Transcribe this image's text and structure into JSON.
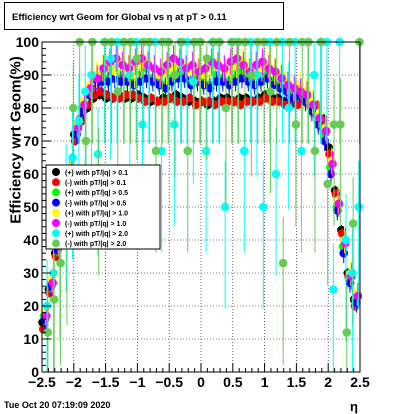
{
  "header": {
    "title": "Efficiency wrt Geom for Global vs   η at pT > 0.11"
  },
  "footer": {
    "timestamp": "Tue Oct 20 07:19:09 2020"
  },
  "chart_data": {
    "type": "scatter",
    "title": "Efficiency wrt Geom for Global vs   η at pT > 0.11",
    "xlabel": "η",
    "ylabel": "Efficiency wrt Geom(%)",
    "xlim": [
      -2.5,
      2.5
    ],
    "ylim": [
      0,
      100
    ],
    "x_ticks": [
      -2.5,
      -2,
      -1.5,
      -1,
      -0.5,
      0,
      0.5,
      1,
      1.5,
      2,
      2.5
    ],
    "x_tick_labels": [
      "−2.5",
      "−2",
      "−1.5",
      "−1",
      "−0.5",
      "0",
      "0.5",
      "1",
      "1.5",
      "2",
      "2.5"
    ],
    "y_ticks": [
      0,
      10,
      20,
      30,
      40,
      50,
      60,
      70,
      80,
      90,
      100
    ],
    "y_tick_labels": [
      "0",
      "10",
      "20",
      "30",
      "40",
      "50",
      "60",
      "70",
      "80",
      "90",
      "100"
    ],
    "grid": true,
    "legend_position": "left-middle",
    "series": [
      {
        "name": "(+) with pT/|q| > 0.1",
        "color": "#000000",
        "kind": "low",
        "x": [
          -2.45,
          -2.35,
          -2.25,
          -2.15,
          -2.05,
          -1.95,
          -1.85,
          -1.75,
          -1.65,
          -1.55,
          -1.45,
          -1.35,
          -1.25,
          -1.15,
          -1.05,
          -0.95,
          -0.85,
          -0.75,
          -0.65,
          -0.55,
          -0.45,
          -0.35,
          -0.25,
          -0.15,
          -0.05,
          0.05,
          0.15,
          0.25,
          0.35,
          0.45,
          0.55,
          0.65,
          0.75,
          0.85,
          0.95,
          1.05,
          1.15,
          1.25,
          1.35,
          1.45,
          1.55,
          1.65,
          1.75,
          1.85,
          1.95,
          2.05,
          2.15,
          2.25,
          2.35,
          2.45
        ],
        "y": [
          15,
          25,
          36,
          48,
          58,
          72,
          77,
          80,
          83,
          84,
          83,
          83,
          84,
          83,
          83,
          84,
          83,
          82,
          82,
          83,
          83,
          84,
          83,
          82,
          82,
          82,
          81,
          82,
          83,
          83,
          82,
          83,
          83,
          82,
          83,
          84,
          83,
          83,
          82,
          81,
          82,
          83,
          82,
          81,
          77,
          68,
          55,
          43,
          30,
          22
        ]
      },
      {
        "name": "(-) with pT/|q| > 0.1",
        "color": "#ff0000",
        "kind": "low",
        "x": [
          -2.45,
          -2.35,
          -2.25,
          -2.15,
          -2.05,
          -1.95,
          -1.85,
          -1.75,
          -1.65,
          -1.55,
          -1.45,
          -1.35,
          -1.25,
          -1.15,
          -1.05,
          -0.95,
          -0.85,
          -0.75,
          -0.65,
          -0.55,
          -0.45,
          -0.35,
          -0.25,
          -0.15,
          -0.05,
          0.05,
          0.15,
          0.25,
          0.35,
          0.45,
          0.55,
          0.65,
          0.75,
          0.85,
          0.95,
          1.05,
          1.15,
          1.25,
          1.35,
          1.45,
          1.55,
          1.65,
          1.75,
          1.85,
          1.95,
          2.05,
          2.15,
          2.25,
          2.35,
          2.45
        ],
        "y": [
          13,
          24,
          35,
          47,
          57,
          70,
          76,
          81,
          84,
          85,
          84,
          83,
          83,
          84,
          84,
          83,
          82,
          83,
          82,
          82,
          83,
          82,
          82,
          83,
          81,
          82,
          82,
          81,
          82,
          82,
          82,
          81,
          82,
          82,
          82,
          83,
          82,
          82,
          81,
          82,
          81,
          82,
          81,
          81,
          76,
          66,
          54,
          42,
          29,
          20
        ]
      },
      {
        "name": "(+) with pT/|q| > 0.5",
        "color": "#00ff00",
        "kind": "mid",
        "x": [
          -2.45,
          -2.35,
          -2.25,
          -2.15,
          -2.05,
          -1.95,
          -1.85,
          -1.75,
          -1.65,
          -1.55,
          -1.45,
          -1.35,
          -1.25,
          -1.15,
          -1.05,
          -0.95,
          -0.85,
          -0.75,
          -0.65,
          -0.55,
          -0.45,
          -0.35,
          -0.25,
          -0.15,
          -0.05,
          0.05,
          0.15,
          0.25,
          0.35,
          0.45,
          0.55,
          0.65,
          0.75,
          0.85,
          0.95,
          1.05,
          1.15,
          1.25,
          1.35,
          1.45,
          1.55,
          1.65,
          1.75,
          1.85,
          1.95,
          2.05,
          2.15,
          2.25,
          2.35,
          2.45
        ],
        "y": [
          17,
          27,
          38,
          50,
          61,
          73,
          80,
          85,
          88,
          90,
          89,
          91,
          90,
          89,
          88,
          90,
          92,
          89,
          88,
          87,
          89,
          91,
          90,
          88,
          89,
          88,
          87,
          90,
          89,
          88,
          90,
          91,
          89,
          88,
          89,
          90,
          88,
          87,
          86,
          84,
          85,
          83,
          80,
          76,
          72,
          62,
          50,
          38,
          28,
          22
        ]
      },
      {
        "name": "(-) with pT/|q| > 0.5",
        "color": "#0000ff",
        "kind": "mid",
        "x": [
          -2.45,
          -2.35,
          -2.25,
          -2.15,
          -2.05,
          -1.95,
          -1.85,
          -1.75,
          -1.65,
          -1.55,
          -1.45,
          -1.35,
          -1.25,
          -1.15,
          -1.05,
          -0.95,
          -0.85,
          -0.75,
          -0.65,
          -0.55,
          -0.45,
          -0.35,
          -0.25,
          -0.15,
          -0.05,
          0.05,
          0.15,
          0.25,
          0.35,
          0.45,
          0.55,
          0.65,
          0.75,
          0.85,
          0.95,
          1.05,
          1.15,
          1.25,
          1.35,
          1.45,
          1.55,
          1.65,
          1.75,
          1.85,
          1.95,
          2.05,
          2.15,
          2.25,
          2.35,
          2.45
        ],
        "y": [
          16,
          26,
          37,
          49,
          60,
          72,
          79,
          84,
          87,
          88,
          88,
          89,
          88,
          88,
          87,
          88,
          89,
          88,
          87,
          86,
          88,
          89,
          89,
          87,
          88,
          87,
          86,
          88,
          88,
          87,
          88,
          89,
          88,
          87,
          88,
          89,
          87,
          86,
          85,
          83,
          84,
          82,
          79,
          75,
          70,
          60,
          49,
          36,
          27,
          21
        ]
      },
      {
        "name": "(+) with pT/|q| > 1.0",
        "color": "#ffff00",
        "kind": "high",
        "x": [
          -2.45,
          -2.35,
          -2.25,
          -2.15,
          -2.05,
          -1.95,
          -1.85,
          -1.75,
          -1.65,
          -1.55,
          -1.45,
          -1.35,
          -1.25,
          -1.15,
          -1.05,
          -0.95,
          -0.85,
          -0.75,
          -0.65,
          -0.55,
          -0.45,
          -0.35,
          -0.25,
          -0.15,
          -0.05,
          0.05,
          0.15,
          0.25,
          0.35,
          0.45,
          0.55,
          0.65,
          0.75,
          0.85,
          0.95,
          1.05,
          1.15,
          1.25,
          1.35,
          1.45,
          1.55,
          1.65,
          1.75,
          1.85,
          1.95,
          2.05,
          2.15,
          2.25,
          2.35,
          2.45
        ],
        "y": [
          18,
          28,
          39,
          52,
          62,
          75,
          82,
          87,
          90,
          92,
          93,
          91,
          94,
          92,
          90,
          93,
          94,
          92,
          90,
          91,
          92,
          94,
          93,
          91,
          92,
          90,
          92,
          94,
          92,
          91,
          93,
          94,
          92,
          90,
          92,
          93,
          91,
          90,
          88,
          86,
          87,
          85,
          82,
          78,
          74,
          64,
          52,
          40,
          30,
          24
        ]
      },
      {
        "name": "(-) with pT/|q| > 1.0",
        "color": "#ff00ff",
        "kind": "high",
        "x": [
          -2.45,
          -2.35,
          -2.25,
          -2.15,
          -2.05,
          -1.95,
          -1.85,
          -1.75,
          -1.65,
          -1.55,
          -1.45,
          -1.35,
          -1.25,
          -1.15,
          -1.05,
          -0.95,
          -0.85,
          -0.75,
          -0.65,
          -0.55,
          -0.45,
          -0.35,
          -0.25,
          -0.15,
          -0.05,
          0.05,
          0.15,
          0.25,
          0.35,
          0.45,
          0.55,
          0.65,
          0.75,
          0.85,
          0.95,
          1.05,
          1.15,
          1.25,
          1.35,
          1.45,
          1.55,
          1.65,
          1.75,
          1.85,
          1.95,
          2.05,
          2.15,
          2.25,
          2.35,
          2.45
        ],
        "y": [
          17,
          27,
          38,
          51,
          61,
          74,
          81,
          86,
          89,
          92,
          94,
          95,
          93,
          92,
          94,
          95,
          93,
          92,
          91,
          93,
          95,
          94,
          92,
          93,
          91,
          92,
          94,
          93,
          92,
          94,
          95,
          93,
          91,
          93,
          94,
          92,
          91,
          89,
          87,
          86,
          85,
          84,
          81,
          77,
          73,
          63,
          51,
          39,
          29,
          23
        ]
      },
      {
        "name": "(+) with pT/|q| > 2.0",
        "color": "#00ffff",
        "kind": "scatter",
        "x": [
          -2.45,
          -2.35,
          -2.25,
          -2.15,
          -2.05,
          -1.95,
          -1.85,
          -1.75,
          -1.65,
          -1.55,
          -1.45,
          -1.35,
          -1.25,
          -1.15,
          -1.05,
          -0.95,
          -0.85,
          -0.75,
          -0.65,
          -0.55,
          -0.45,
          -0.35,
          -0.25,
          -0.15,
          -0.05,
          0.05,
          0.15,
          0.25,
          0.35,
          0.45,
          0.55,
          0.65,
          0.75,
          0.85,
          0.95,
          1.05,
          1.15,
          1.25,
          1.35,
          1.45,
          1.55,
          1.65,
          1.75,
          1.85,
          1.95,
          2.05,
          2.15,
          2.25,
          2.35,
          2.45
        ],
        "y": [
          20,
          30,
          40,
          55,
          65,
          76,
          85,
          90,
          66,
          100,
          95,
          100,
          100,
          90,
          100,
          75,
          100,
          100,
          67,
          100,
          75,
          100,
          100,
          88,
          100,
          67,
          100,
          100,
          50,
          100,
          100,
          67,
          100,
          90,
          50,
          100,
          60,
          100,
          80,
          100,
          67,
          100,
          90,
          100,
          100,
          25,
          100,
          40,
          30,
          50
        ]
      },
      {
        "name": "(-) with pT/|q| > 2.0",
        "color": "#66cc55",
        "kind": "scatter",
        "x": [
          -2.45,
          -2.35,
          -2.25,
          -2.15,
          -2.05,
          -1.95,
          -1.85,
          -1.75,
          -1.65,
          -1.55,
          -1.45,
          -1.35,
          -1.25,
          -1.15,
          -1.05,
          -0.95,
          -0.85,
          -0.75,
          -0.65,
          -0.55,
          -0.45,
          -0.35,
          -0.25,
          -0.15,
          -0.05,
          0.05,
          0.15,
          0.25,
          0.35,
          0.45,
          0.55,
          0.65,
          0.75,
          0.85,
          0.95,
          1.05,
          1.15,
          1.25,
          1.35,
          1.45,
          1.55,
          1.65,
          1.75,
          1.85,
          1.95,
          2.05,
          2.15,
          2.25,
          2.35,
          2.45
        ],
        "y": [
          12,
          22,
          33,
          45,
          80,
          100,
          70,
          100,
          60,
          100,
          100,
          85,
          100,
          100,
          95,
          100,
          100,
          67,
          100,
          100,
          90,
          100,
          67,
          100,
          100,
          95,
          100,
          100,
          80,
          100,
          100,
          100,
          90,
          100,
          100,
          85,
          100,
          33,
          100,
          75,
          100,
          100,
          67,
          100,
          57,
          75,
          75,
          12,
          45,
          100
        ]
      }
    ]
  }
}
